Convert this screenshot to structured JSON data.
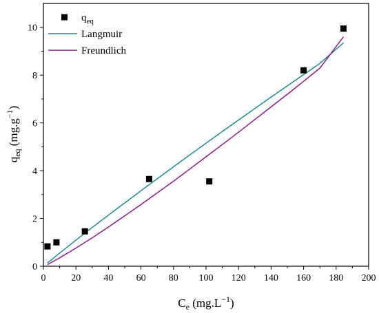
{
  "chart_data": {
    "type": "scatter",
    "xlabel": {
      "base": "C",
      "sub": "e",
      "unit": " (mg.L",
      "sup": "−1",
      "close": ")"
    },
    "ylabel": {
      "base": "q",
      "sub": "eq",
      "unit": " (mg.g",
      "sup": "−1",
      "close": ")"
    },
    "xlim": [
      0,
      200
    ],
    "ylim": [
      0,
      11
    ],
    "xticks": [
      0,
      20,
      40,
      60,
      80,
      100,
      120,
      140,
      160,
      180,
      200
    ],
    "yticks": [
      0,
      2,
      4,
      6,
      8,
      10
    ],
    "grid": false,
    "legend_position": "top-left",
    "series": [
      {
        "kind": "points",
        "name": {
          "base": "q",
          "sub": "eq"
        },
        "color": "#000000",
        "marker": "square",
        "x": [
          2.5,
          8.0,
          25.5,
          65.0,
          102.0,
          160.0,
          184.5
        ],
        "y": [
          0.83,
          1.0,
          1.46,
          3.65,
          3.55,
          8.2,
          9.95
        ]
      },
      {
        "kind": "line",
        "name": {
          "base": "Langmuir"
        },
        "color": "#1a8a8a",
        "x": [
          2.5,
          10,
          20,
          30,
          40,
          50,
          60,
          70,
          80,
          90,
          100,
          110,
          120,
          130,
          140,
          150,
          160,
          170,
          184.5
        ],
        "y": [
          0.14,
          0.55,
          1.09,
          1.62,
          2.14,
          2.65,
          3.16,
          3.66,
          4.16,
          4.66,
          5.15,
          5.64,
          6.12,
          6.6,
          7.08,
          7.55,
          8.02,
          8.49,
          9.35
        ]
      },
      {
        "kind": "line",
        "name": {
          "base": "Freundlich"
        },
        "color": "#8b1a8b",
        "x": [
          2.5,
          10,
          20,
          30,
          40,
          50,
          60,
          70,
          80,
          90,
          100,
          110,
          120,
          130,
          140,
          150,
          160,
          170,
          184.5
        ],
        "y": [
          0.07,
          0.35,
          0.76,
          1.19,
          1.64,
          2.11,
          2.58,
          3.07,
          3.56,
          4.07,
          4.58,
          5.09,
          5.61,
          6.14,
          6.67,
          7.2,
          7.74,
          8.29,
          9.6
        ]
      }
    ]
  }
}
